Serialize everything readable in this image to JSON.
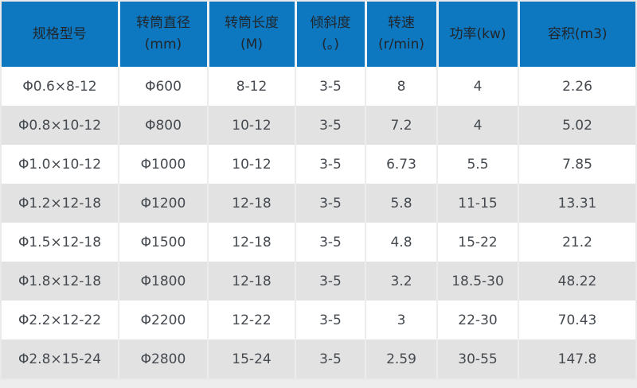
{
  "colors": {
    "header_bg": "#0d77c0",
    "header_text": "#20262b",
    "body_text": "#454a50",
    "row_alt_bg": "#e2e2e2",
    "separator": "#ececec",
    "page_bg": "#ededed"
  },
  "table": {
    "columns": [
      {
        "line1": "规格型号",
        "line2": ""
      },
      {
        "line1": "转筒直径",
        "line2": "(mm)"
      },
      {
        "line1": "转筒长度",
        "line2": "(M)"
      },
      {
        "line1": "倾斜度",
        "line2": "(。)"
      },
      {
        "line1": "转速",
        "line2": "(r/min)"
      },
      {
        "line1": "功率(kw)",
        "line2": ""
      },
      {
        "line1": "容积(m3)",
        "line2": ""
      }
    ],
    "rows": [
      [
        "Φ0.6×8-12",
        "Φ600",
        "8-12",
        "3-5",
        "8",
        "4",
        "2.26"
      ],
      [
        "Φ0.8×10-12",
        "Φ800",
        "10-12",
        "3-5",
        "7.2",
        "4",
        "5.02"
      ],
      [
        "Φ1.0×10-12",
        "Φ1000",
        "10-12",
        "3-5",
        "6.73",
        "5.5",
        "7.85"
      ],
      [
        "Φ1.2×12-18",
        "Φ1200",
        "12-18",
        "3-5",
        "5.8",
        "11-15",
        "13.31"
      ],
      [
        "Φ1.5×12-18",
        "Φ1500",
        "12-18",
        "3-5",
        "4.8",
        "15-22",
        "21.2"
      ],
      [
        "Φ1.8×12-18",
        "Φ1800",
        "12-18",
        "3-5",
        "3.2",
        "18.5-30",
        "48.22"
      ],
      [
        "Φ2.2×12-22",
        "Φ2200",
        "12-22",
        "3-5",
        "3",
        "22-30",
        "70.43"
      ],
      [
        "Φ2.8×15-24",
        "Φ2800",
        "15-24",
        "3-5",
        "2.59",
        "30-55",
        "147.8"
      ]
    ]
  },
  "chart_data": {
    "type": "table",
    "title": "",
    "columns": [
      "规格型号",
      "转筒直径(mm)",
      "转筒长度(M)",
      "倾斜度(。)",
      "转速(r/min)",
      "功率(kw)",
      "容积(m3)"
    ],
    "rows": [
      [
        "Φ0.6×8-12",
        "Φ600",
        "8-12",
        "3-5",
        "8",
        "4",
        "2.26"
      ],
      [
        "Φ0.8×10-12",
        "Φ800",
        "10-12",
        "3-5",
        "7.2",
        "4",
        "5.02"
      ],
      [
        "Φ1.0×10-12",
        "Φ1000",
        "10-12",
        "3-5",
        "6.73",
        "5.5",
        "7.85"
      ],
      [
        "Φ1.2×12-18",
        "Φ1200",
        "12-18",
        "3-5",
        "5.8",
        "11-15",
        "13.31"
      ],
      [
        "Φ1.5×12-18",
        "Φ1500",
        "12-18",
        "3-5",
        "4.8",
        "15-22",
        "21.2"
      ],
      [
        "Φ1.8×12-18",
        "Φ1800",
        "12-18",
        "3-5",
        "3.2",
        "18.5-30",
        "48.22"
      ],
      [
        "Φ2.2×12-22",
        "Φ2200",
        "12-22",
        "3-5",
        "3",
        "22-30",
        "70.43"
      ],
      [
        "Φ2.8×15-24",
        "Φ2800",
        "15-24",
        "3-5",
        "2.59",
        "30-55",
        "147.8"
      ]
    ]
  }
}
